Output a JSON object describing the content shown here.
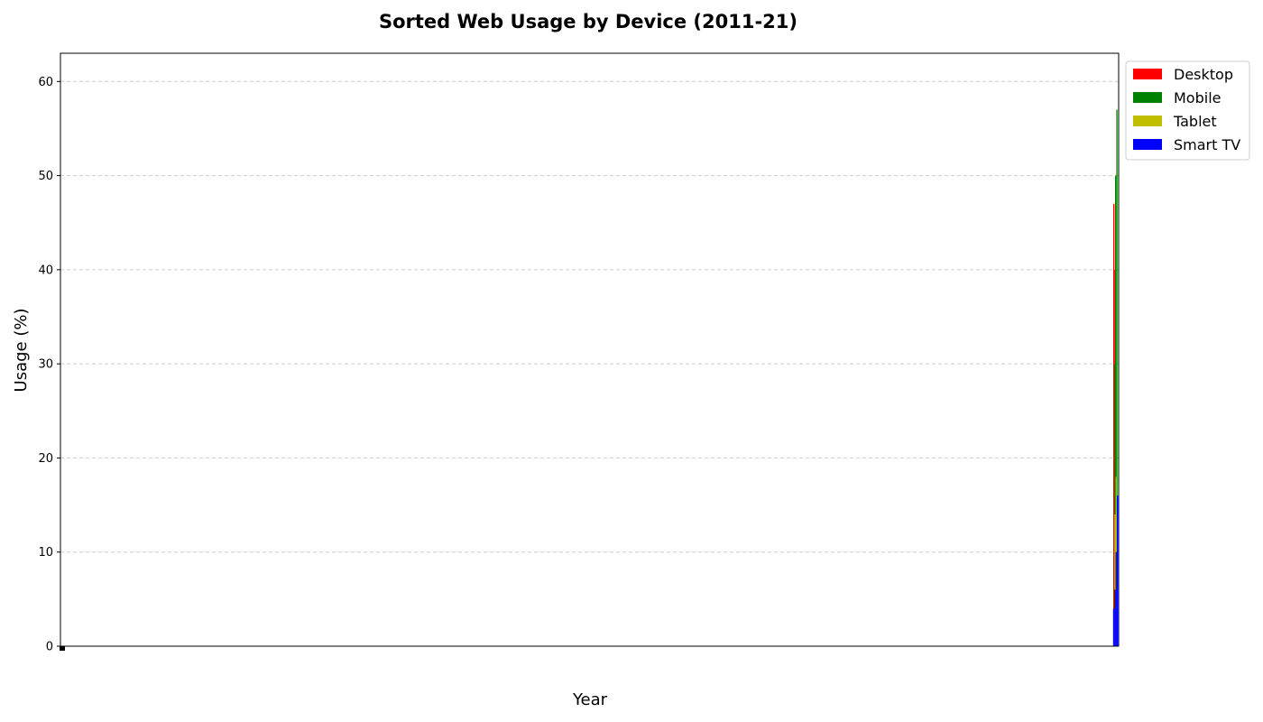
{
  "chart_data": {
    "type": "bar",
    "title": "Sorted Web Usage by Device (2011-21)",
    "xlabel": "Year",
    "ylabel": "Usage (%)",
    "ylim": [
      0,
      63
    ],
    "yticks": [
      0,
      10,
      20,
      30,
      40,
      50,
      60
    ],
    "grid": true,
    "legend_position": "outside top-right",
    "series": [
      {
        "name": "Desktop",
        "color": "#ff0000",
        "values": [
          47,
          40
        ]
      },
      {
        "name": "Mobile",
        "color": "#008000",
        "values": [
          30,
          50,
          57
        ]
      },
      {
        "name": "Tablet",
        "color": "#bfbf00",
        "values": [
          14,
          18
        ]
      },
      {
        "name": "Smart TV",
        "color": "#0000ff",
        "values": [
          4,
          6,
          10,
          16
        ]
      }
    ]
  }
}
